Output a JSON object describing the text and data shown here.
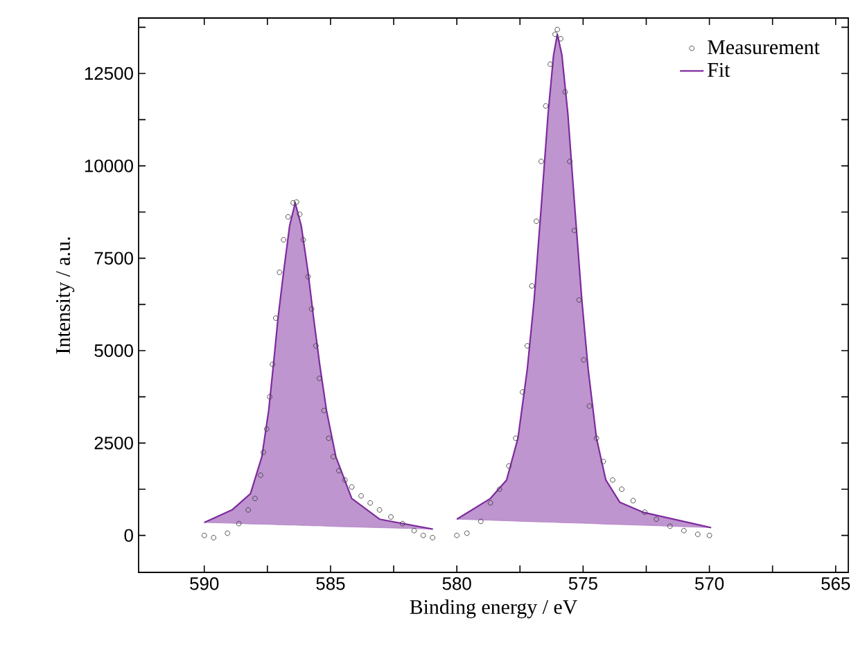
{
  "chart_data": {
    "type": "line",
    "xlabel": "Binding energy / eV",
    "ylabel": "Intensity / a.u.",
    "xlim": [
      592.6,
      564.5
    ],
    "ylim": [
      -1000,
      14000
    ],
    "xticks": [
      590,
      {
        "value": 587.5,
        "label": null
      },
      585,
      {
        "value": 582.5,
        "label": null
      },
      580,
      {
        "value": 577.5,
        "label": null
      },
      575,
      {
        "value": 572.5,
        "label": null
      },
      570,
      {
        "value": 567.5,
        "label": null
      },
      565
    ],
    "yticks": [
      0,
      {
        "value": 1250,
        "label": null
      },
      2500,
      {
        "value": 3750,
        "label": null
      },
      5000,
      {
        "value": 6250,
        "label": null
      },
      7500,
      {
        "value": 8750,
        "label": null
      },
      10000,
      {
        "value": 11250,
        "label": null
      },
      12500,
      {
        "value": 13750,
        "label": null
      }
    ],
    "grid": false,
    "legend": "top right",
    "series": [
      {
        "name": "Measurement",
        "type": "scatter",
        "marker": "circle",
        "color": "#404040",
        "x": [
          590.0,
          589.63,
          589.08,
          588.63,
          588.26,
          587.99,
          587.77,
          587.66,
          587.53,
          587.41,
          587.3,
          587.17,
          587.02,
          586.86,
          586.68,
          586.48,
          586.35,
          586.22,
          586.08,
          585.89,
          585.75,
          585.58,
          585.44,
          585.26,
          585.07,
          584.89,
          584.67,
          584.43,
          584.16,
          583.79,
          583.43,
          583.06,
          582.61,
          582.15,
          581.69,
          581.33,
          580.96,
          580.0,
          579.6,
          579.05,
          578.67,
          578.31,
          577.94,
          577.67,
          577.4,
          577.21,
          577.03,
          576.85,
          576.66,
          576.48,
          576.3,
          576.11,
          576.02,
          575.89,
          575.71,
          575.53,
          575.35,
          575.16,
          574.98,
          574.75,
          574.47,
          574.2,
          573.83,
          573.47,
          573.02,
          572.56,
          572.1,
          571.56,
          571.01,
          570.46,
          570.0
        ],
        "values": [
          0,
          -60,
          60,
          320,
          690,
          1000,
          1630,
          2250,
          2880,
          3750,
          4630,
          5880,
          7120,
          8000,
          8620,
          9000,
          9020,
          8690,
          8000,
          7000,
          6130,
          5130,
          4250,
          3380,
          2630,
          2130,
          1750,
          1500,
          1310,
          1070,
          880,
          690,
          500,
          320,
          130,
          0,
          -60,
          0,
          60,
          380,
          880,
          1250,
          1880,
          2630,
          3880,
          5130,
          6750,
          8500,
          10120,
          11620,
          12750,
          13560,
          13690,
          13440,
          12000,
          10120,
          8250,
          6370,
          4750,
          3500,
          2630,
          2000,
          1500,
          1250,
          940,
          630,
          440,
          250,
          130,
          30,
          0
        ]
      },
      {
        "name": "Fit",
        "color": "#7d2a9e",
        "marker": "none",
        "line_style": "solid",
        "x": [
          590.0,
          588.9,
          588.17,
          587.72,
          587.45,
          587.26,
          587.08,
          586.86,
          586.62,
          586.4,
          586.16,
          585.89,
          585.67,
          585.43,
          585.16,
          584.79,
          584.16,
          583.06,
          580.95,
          580.5,
          580.0,
          578.67,
          578.03,
          577.58,
          577.21,
          576.94,
          576.66,
          576.39,
          576.17,
          576.02,
          575.84,
          575.6,
          575.33,
          575.05,
          574.8,
          574.47,
          574.1,
          573.55,
          572.64,
          569.93
        ],
        "values": [
          350,
          690,
          1130,
          2130,
          3380,
          4630,
          5880,
          7120,
          8380,
          9000,
          8380,
          7120,
          5880,
          4630,
          3380,
          2130,
          1000,
          440,
          170,
          null,
          440,
          1000,
          1500,
          2630,
          4500,
          6370,
          8880,
          11380,
          13000,
          13560,
          13000,
          11380,
          8880,
          6370,
          4500,
          2630,
          1500,
          900,
          630,
          210
        ],
        "upper": [
          350,
          690,
          1130,
          2130,
          3380,
          4630,
          5880,
          7120,
          8380,
          9000,
          8380,
          7120,
          5880,
          4630,
          3380,
          2130,
          1000,
          440,
          170,
          null,
          440,
          1000,
          1500,
          2630,
          4500,
          6370,
          8880,
          11380,
          13000,
          13560,
          13000,
          11380,
          8880,
          6370,
          4500,
          2630,
          1500,
          900,
          630,
          210
        ],
        "lower": [
          350,
          330,
          310,
          305,
          300,
          295,
          290,
          285,
          280,
          280,
          270,
          270,
          260,
          260,
          250,
          240,
          230,
          210,
          170,
          null,
          440,
          410,
          395,
          385,
          375,
          370,
          365,
          360,
          355,
          350,
          345,
          340,
          335,
          330,
          325,
          315,
          305,
          295,
          275,
          210
        ]
      }
    ]
  }
}
